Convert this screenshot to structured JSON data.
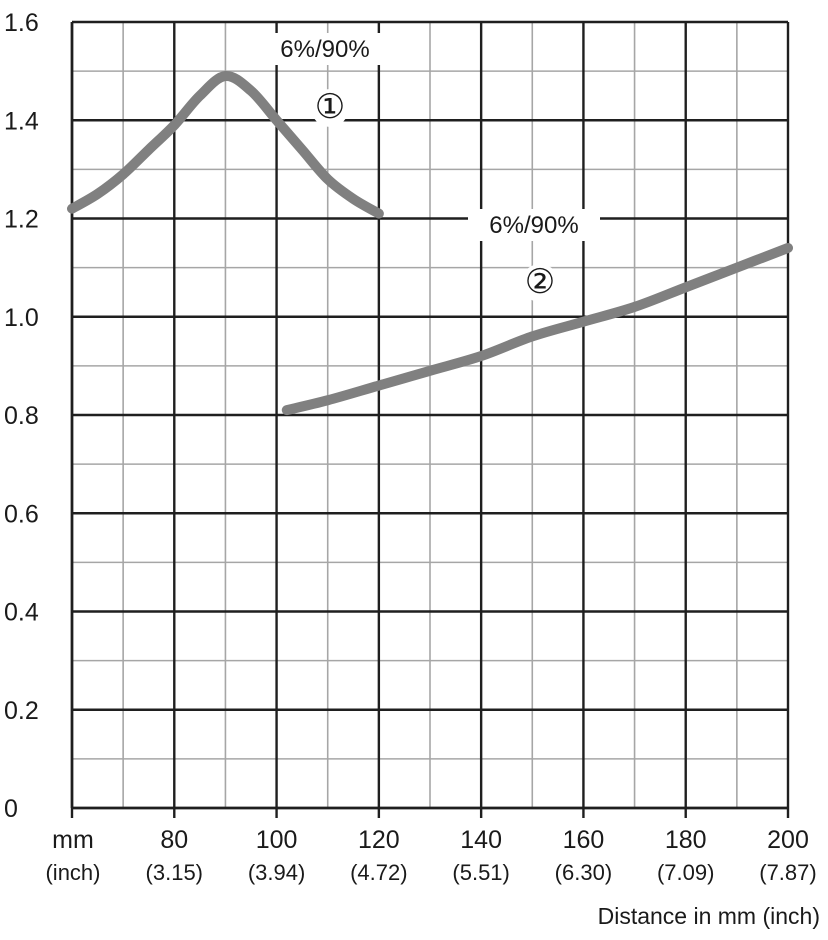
{
  "chart_data": {
    "type": "line",
    "xlabel": "Distance in mm (inch)",
    "ylabel": "",
    "xlim": [
      60,
      200
    ],
    "ylim": [
      0,
      1.6
    ],
    "grid": true,
    "x_unit_label": "mm",
    "x_unit_sub_label": "(inch)",
    "x_ticks": [
      {
        "value": 80,
        "label": "80",
        "sub": "(3.15)"
      },
      {
        "value": 100,
        "label": "100",
        "sub": "(3.94)"
      },
      {
        "value": 120,
        "label": "120",
        "sub": "(4.72)"
      },
      {
        "value": 140,
        "label": "140",
        "sub": "(5.51)"
      },
      {
        "value": 160,
        "label": "160",
        "sub": "(6.30)"
      },
      {
        "value": 180,
        "label": "180",
        "sub": "(7.09)"
      },
      {
        "value": 200,
        "label": "200",
        "sub": "(7.87)"
      }
    ],
    "y_ticks": [
      {
        "value": 0,
        "label": "0"
      },
      {
        "value": 0.2,
        "label": "0.2"
      },
      {
        "value": 0.4,
        "label": "0.4"
      },
      {
        "value": 0.6,
        "label": "0.6"
      },
      {
        "value": 0.8,
        "label": "0.8"
      },
      {
        "value": 1.0,
        "label": "1.0"
      },
      {
        "value": 1.2,
        "label": "1.2"
      },
      {
        "value": 1.4,
        "label": "1.4"
      },
      {
        "value": 1.6,
        "label": "1.6"
      }
    ],
    "series": [
      {
        "marker": "①",
        "annotation": "6%/90%",
        "color": "#808080",
        "x": [
          60,
          65,
          70,
          75,
          80,
          85,
          90,
          95,
          100,
          105,
          110,
          115,
          120
        ],
        "y": [
          1.22,
          1.25,
          1.29,
          1.34,
          1.39,
          1.45,
          1.49,
          1.46,
          1.4,
          1.34,
          1.28,
          1.24,
          1.21
        ]
      },
      {
        "marker": "②",
        "annotation": "6%/90%",
        "color": "#808080",
        "x": [
          102,
          110,
          120,
          130,
          140,
          150,
          160,
          170,
          180,
          190,
          200
        ],
        "y": [
          0.81,
          0.83,
          0.86,
          0.89,
          0.92,
          0.96,
          0.99,
          1.02,
          1.06,
          1.1,
          1.14
        ]
      }
    ]
  }
}
